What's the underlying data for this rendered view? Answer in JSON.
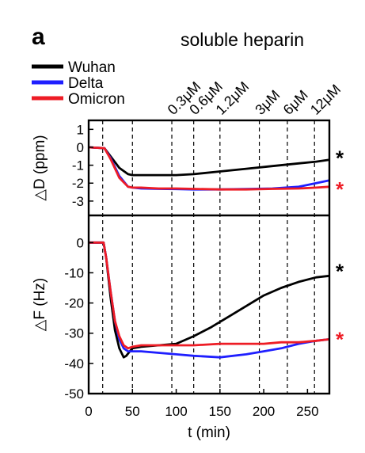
{
  "panel_label": "a",
  "chart_data": {
    "type": "line",
    "title": "soluble heparin",
    "legend": {
      "placement": "top-left",
      "entries": [
        {
          "name": "Wuhan",
          "color": "#000000"
        },
        {
          "name": "Delta",
          "color": "#1f1fff"
        },
        {
          "name": "Omicron",
          "color": "#ee1c25"
        }
      ]
    },
    "injections": {
      "t": [
        16,
        50,
        95,
        120,
        150,
        195,
        227,
        258
      ],
      "labels": [
        "0.3μM",
        "0.6μM",
        "1.2μM",
        "3μM",
        "6μM",
        "12μM"
      ],
      "label_t": [
        95,
        120,
        150,
        195,
        227,
        258
      ]
    },
    "xlabel": "t (min)",
    "xlim": [
      0,
      275
    ],
    "xticks": [
      0,
      50,
      100,
      150,
      200,
      250
    ],
    "subplots": [
      {
        "id": "dD",
        "ylabel": "△D (ppm)",
        "ylim": [
          -3.8,
          1.5
        ],
        "yticks": [
          1,
          0,
          -1,
          -2,
          -3
        ],
        "series": [
          {
            "name": "Wuhan",
            "color": "#000000",
            "x": [
              0,
              18,
              25,
              35,
              45,
              50,
              60,
              80,
              100,
              120,
              150,
              180,
              210,
              240,
              260,
              275
            ],
            "y": [
              0,
              -0.05,
              -0.5,
              -1.15,
              -1.5,
              -1.55,
              -1.55,
              -1.55,
              -1.55,
              -1.5,
              -1.35,
              -1.2,
              -1.05,
              -0.9,
              -0.8,
              -0.7
            ]
          },
          {
            "name": "Delta",
            "color": "#1f1fff",
            "x": [
              0,
              18,
              25,
              35,
              45,
              50,
              60,
              80,
              100,
              120,
              150,
              180,
              210,
              240,
              260,
              275
            ],
            "y": [
              0,
              -0.05,
              -0.6,
              -1.6,
              -2.2,
              -2.25,
              -2.3,
              -2.32,
              -2.33,
              -2.35,
              -2.35,
              -2.33,
              -2.3,
              -2.2,
              -2.0,
              -1.85
            ]
          },
          {
            "name": "Omicron",
            "color": "#ee1c25",
            "x": [
              0,
              18,
              25,
              35,
              45,
              50,
              60,
              80,
              100,
              120,
              150,
              180,
              210,
              240,
              260,
              275
            ],
            "y": [
              0,
              -0.05,
              -0.65,
              -1.7,
              -2.2,
              -2.25,
              -2.25,
              -2.3,
              -2.3,
              -2.32,
              -2.35,
              -2.35,
              -2.32,
              -2.3,
              -2.25,
              -2.2
            ]
          }
        ],
        "annotations": [
          {
            "text": "*",
            "color": "#000000",
            "y": -0.5
          },
          {
            "text": "*",
            "color": "#ee1c25",
            "y": -2.25
          }
        ]
      },
      {
        "id": "dF",
        "ylabel": "△F (Hz)",
        "ylim": [
          -50,
          9
        ],
        "yticks": [
          0,
          -10,
          -20,
          -30,
          -40,
          -50
        ],
        "series": [
          {
            "name": "Wuhan",
            "color": "#000000",
            "x": [
              0,
              17,
              20,
              25,
              30,
              35,
              40,
              43,
              47,
              50,
              60,
              80,
              100,
              120,
              140,
              160,
              180,
              200,
              220,
              240,
              260,
              275
            ],
            "y": [
              0,
              0,
              -5,
              -18,
              -29,
              -35,
              -38,
              -37.5,
              -36,
              -35,
              -34.5,
              -34,
              -33.5,
              -31,
              -28,
              -24.5,
              -21,
              -17.5,
              -15,
              -13,
              -11.5,
              -11
            ]
          },
          {
            "name": "Delta",
            "color": "#1f1fff",
            "x": [
              0,
              17,
              20,
              25,
              30,
              35,
              40,
              45,
              50,
              60,
              80,
              100,
              120,
              150,
              180,
              200,
              220,
              240,
              260,
              275
            ],
            "y": [
              0,
              0,
              -5,
              -16,
              -26,
              -32,
              -35,
              -36,
              -36,
              -36,
              -36.5,
              -37,
              -37.5,
              -38,
              -37,
              -36,
              -35,
              -33.5,
              -32.5,
              -32
            ]
          },
          {
            "name": "Omicron",
            "color": "#ee1c25",
            "x": [
              0,
              17,
              20,
              25,
              30,
              35,
              40,
              45,
              50,
              60,
              80,
              100,
              120,
              150,
              180,
              200,
              220,
              240,
              260,
              275
            ],
            "y": [
              0,
              0,
              -5,
              -16,
              -26,
              -31,
              -34,
              -35,
              -34.5,
              -34,
              -34,
              -34,
              -34,
              -33.5,
              -33.5,
              -33.5,
              -33,
              -33,
              -32.5,
              -32
            ]
          }
        ],
        "annotations": [
          {
            "text": "*",
            "color": "#000000",
            "y": -9
          },
          {
            "text": "*",
            "color": "#ee1c25",
            "y": -31.5
          }
        ]
      }
    ]
  }
}
